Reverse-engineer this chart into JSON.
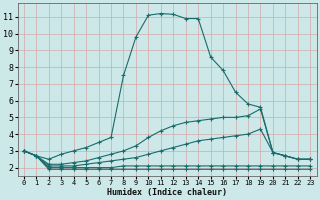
{
  "xlabel": "Humidex (Indice chaleur)",
  "xlim": [
    -0.5,
    23.5
  ],
  "ylim": [
    1.5,
    11.8
  ],
  "xticks": [
    0,
    1,
    2,
    3,
    4,
    5,
    6,
    7,
    8,
    9,
    10,
    11,
    12,
    13,
    14,
    15,
    16,
    17,
    18,
    19,
    20,
    21,
    22,
    23
  ],
  "yticks": [
    2,
    3,
    4,
    5,
    6,
    7,
    8,
    9,
    10,
    11
  ],
  "bg_color": "#cce8e8",
  "line_color": "#1a6b6b",
  "lines": [
    {
      "x": [
        0,
        1,
        2,
        3,
        4,
        5,
        6,
        7,
        8,
        9,
        10,
        11,
        12,
        13,
        14,
        15,
        16,
        17,
        18,
        19,
        20,
        21,
        22,
        23
      ],
      "y": [
        3.0,
        2.7,
        1.9,
        1.9,
        1.9,
        1.9,
        1.9,
        1.9,
        1.9,
        1.9,
        1.9,
        1.9,
        1.9,
        1.9,
        1.9,
        1.9,
        1.9,
        1.9,
        1.9,
        1.9,
        1.9,
        1.9,
        1.9,
        1.9
      ]
    },
    {
      "x": [
        0,
        1,
        2,
        3,
        4,
        5,
        6,
        7,
        8,
        9,
        10,
        11,
        12,
        13,
        14,
        15,
        16,
        17,
        18,
        19,
        20,
        21,
        22,
        23
      ],
      "y": [
        3.0,
        2.7,
        2.0,
        2.0,
        2.0,
        2.0,
        2.0,
        2.0,
        2.1,
        2.1,
        2.1,
        2.1,
        2.1,
        2.1,
        2.1,
        2.1,
        2.1,
        2.1,
        2.1,
        2.1,
        2.1,
        2.1,
        2.1,
        2.1
      ]
    },
    {
      "x": [
        0,
        1,
        2,
        3,
        4,
        5,
        6,
        7,
        8,
        9,
        10,
        11,
        12,
        13,
        14,
        15,
        16,
        17,
        18,
        19,
        20,
        21,
        22,
        23
      ],
      "y": [
        3.0,
        2.7,
        2.1,
        2.1,
        2.1,
        2.2,
        2.3,
        2.4,
        2.5,
        2.6,
        2.8,
        3.0,
        3.2,
        3.4,
        3.6,
        3.7,
        3.8,
        3.9,
        4.0,
        4.3,
        2.9,
        2.7,
        2.5,
        2.5
      ]
    },
    {
      "x": [
        0,
        1,
        2,
        3,
        4,
        5,
        6,
        7,
        8,
        9,
        10,
        11,
        12,
        13,
        14,
        15,
        16,
        17,
        18,
        19,
        20,
        21,
        22,
        23
      ],
      "y": [
        3.0,
        2.7,
        2.2,
        2.2,
        2.3,
        2.4,
        2.6,
        2.8,
        3.0,
        3.3,
        3.8,
        4.2,
        4.5,
        4.7,
        4.8,
        4.9,
        5.0,
        5.0,
        5.1,
        5.5,
        2.9,
        2.7,
        2.5,
        2.5
      ]
    },
    {
      "x": [
        0,
        1,
        2,
        3,
        4,
        5,
        6,
        7,
        8,
        9,
        10,
        11,
        12,
        13,
        14,
        15,
        16,
        17,
        18,
        19,
        20,
        21,
        22,
        23
      ],
      "y": [
        3.0,
        2.7,
        2.5,
        2.8,
        3.0,
        3.2,
        3.5,
        3.8,
        7.5,
        9.8,
        11.1,
        11.2,
        11.15,
        10.9,
        10.9,
        8.6,
        7.8,
        6.5,
        5.8,
        5.6,
        2.9,
        2.7,
        2.5,
        2.5
      ]
    }
  ]
}
